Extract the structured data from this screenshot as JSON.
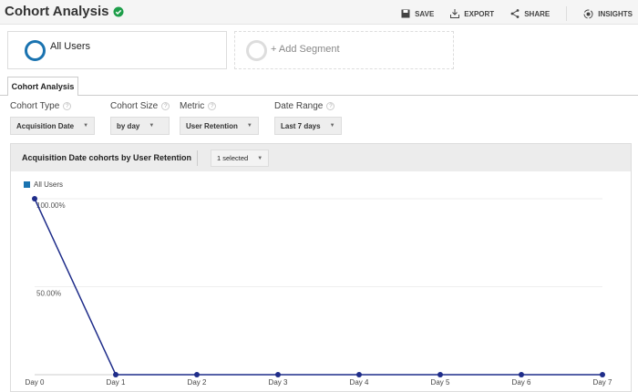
{
  "header": {
    "title": "Cohort Analysis",
    "verified_icon": "check-shield-icon",
    "actions": [
      {
        "label": "SAVE",
        "icon": "save-icon"
      },
      {
        "label": "EXPORT",
        "icon": "export-icon"
      },
      {
        "label": "SHARE",
        "icon": "share-icon"
      },
      {
        "label": "INSIGHTS",
        "icon": "insights-icon"
      }
    ]
  },
  "segments": {
    "active": "All Users",
    "add": "+ Add Segment"
  },
  "tab": "Cohort Analysis",
  "controls": [
    {
      "label": "Cohort Type",
      "value": "Acquisition Date"
    },
    {
      "label": "Cohort Size",
      "value": "by day"
    },
    {
      "label": "Metric",
      "value": "User Retention"
    },
    {
      "label": "Date Range",
      "value": "Last 7 days"
    }
  ],
  "panel": {
    "title": "Acquisition Date cohorts by User Retention",
    "selector": "1 selected"
  },
  "chart_data": {
    "type": "line",
    "categories": [
      "Day 0",
      "Day 1",
      "Day 2",
      "Day 3",
      "Day 4",
      "Day 5",
      "Day 6",
      "Day 7"
    ],
    "series": [
      {
        "name": "All Users",
        "values": [
          100,
          0,
          0,
          0,
          0,
          0,
          0,
          0
        ],
        "color": "#1f2d8a"
      }
    ],
    "y_ticks": [
      "100.00%",
      "50.00%"
    ],
    "ylim": [
      0,
      100
    ],
    "legend": "top-left",
    "grid": true
  }
}
